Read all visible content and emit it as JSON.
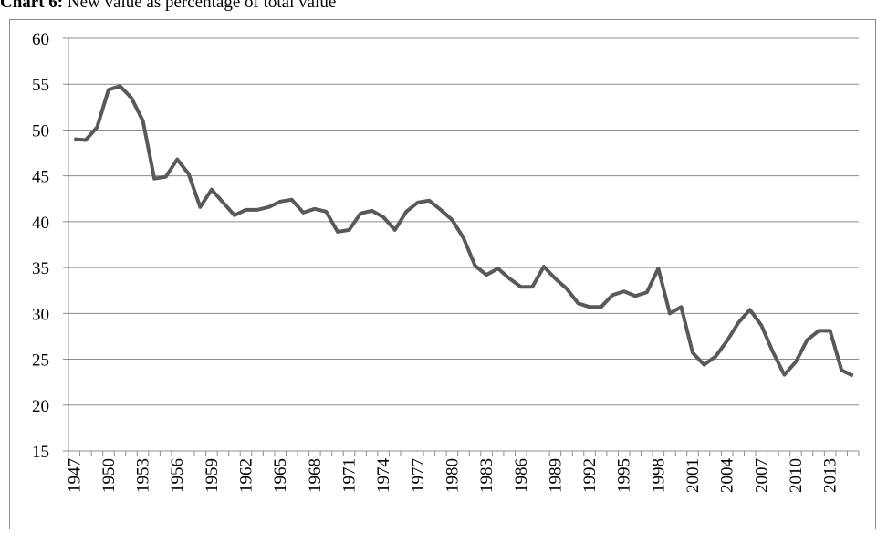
{
  "chart_data": {
    "type": "line",
    "title_prefix": "Chart 6:",
    "title": "New value as percentage of total value",
    "categories": [
      "1947",
      null,
      null,
      "1950",
      null,
      null,
      "1953",
      null,
      null,
      "1956",
      null,
      null,
      "1959",
      null,
      null,
      "1962",
      null,
      null,
      "1965",
      null,
      null,
      "1968",
      null,
      null,
      "1971",
      null,
      null,
      "1974",
      null,
      null,
      "1977",
      null,
      null,
      "1980",
      null,
      null,
      "1983",
      null,
      null,
      "1986",
      null,
      null,
      "1989",
      null,
      null,
      "1992",
      null,
      null,
      "1995",
      null,
      null,
      "1998",
      null,
      null,
      "2001",
      null,
      null,
      "2004",
      null,
      null,
      "2007",
      null,
      null,
      "2010",
      null,
      null,
      "2013",
      null,
      null
    ],
    "values": [
      49.0,
      48.9,
      50.3,
      54.4,
      54.8,
      53.5,
      51.0,
      44.7,
      44.9,
      46.8,
      45.2,
      41.6,
      43.5,
      42.1,
      40.7,
      41.3,
      41.3,
      41.6,
      42.2,
      42.4,
      41.0,
      41.4,
      41.1,
      38.9,
      39.1,
      40.9,
      41.2,
      40.5,
      39.1,
      41.1,
      42.1,
      42.3,
      41.3,
      40.2,
      38.2,
      35.2,
      34.2,
      34.9,
      33.8,
      32.9,
      32.9,
      35.1,
      33.8,
      32.7,
      31.1,
      30.7,
      30.7,
      32.0,
      32.4,
      31.9,
      32.3,
      34.9,
      30.0,
      30.7,
      25.7,
      24.4,
      25.3,
      27.0,
      29.0,
      30.4,
      28.7,
      25.8,
      23.3,
      24.7,
      27.1,
      28.1,
      28.1,
      23.8,
      23.2
    ],
    "color": "#595959",
    "ylim": [
      15,
      60
    ],
    "yticks": [
      15,
      20,
      25,
      30,
      35,
      40,
      45,
      50,
      55,
      60
    ],
    "grid": true
  }
}
